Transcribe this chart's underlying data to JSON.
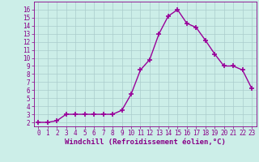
{
  "x": [
    0,
    1,
    2,
    3,
    4,
    5,
    6,
    7,
    8,
    9,
    10,
    11,
    12,
    13,
    14,
    15,
    16,
    17,
    18,
    19,
    20,
    21,
    22,
    23
  ],
  "y": [
    2,
    2,
    2.2,
    3,
    3,
    3,
    3,
    3,
    3,
    3.5,
    5.5,
    8.5,
    9.8,
    13,
    15.2,
    16,
    14.3,
    13.8,
    12.2,
    10.5,
    9,
    9,
    8.5,
    6.2
  ],
  "line_color": "#990099",
  "marker": "+",
  "marker_size": 4,
  "marker_linewidth": 1.2,
  "bg_color": "#cceee8",
  "grid_color": "#aacccc",
  "xlabel": "Windchill (Refroidissement éolien,°C)",
  "xlim": [
    -0.5,
    23.5
  ],
  "ylim": [
    1.5,
    17
  ],
  "yticks": [
    2,
    3,
    4,
    5,
    6,
    7,
    8,
    9,
    10,
    11,
    12,
    13,
    14,
    15,
    16
  ],
  "xticks": [
    0,
    1,
    2,
    3,
    4,
    5,
    6,
    7,
    8,
    9,
    10,
    11,
    12,
    13,
    14,
    15,
    16,
    17,
    18,
    19,
    20,
    21,
    22,
    23
  ],
  "tick_color": "#880088",
  "tick_fontsize": 5.5,
  "xlabel_fontsize": 6.5,
  "spine_color": "#880088",
  "linewidth": 1.0
}
